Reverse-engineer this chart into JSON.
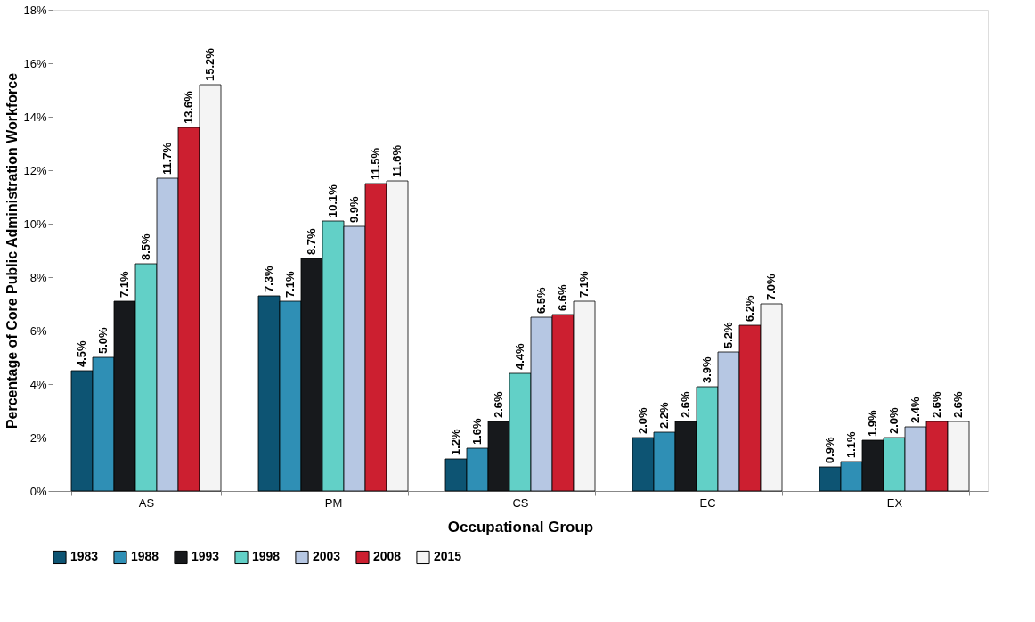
{
  "chart_data": {
    "type": "bar",
    "xlabel": "Occupational Group",
    "ylabel": "Percentage of Core Public Administration Workforce",
    "categories": [
      "AS",
      "PM",
      "CS",
      "EC",
      "EX"
    ],
    "ylim": [
      0,
      18
    ],
    "yticks": [
      {
        "value": 0,
        "label": "0%"
      },
      {
        "value": 2,
        "label": "2%"
      },
      {
        "value": 4,
        "label": "4%"
      },
      {
        "value": 6,
        "label": "6%"
      },
      {
        "value": 8,
        "label": "8%"
      },
      {
        "value": 10,
        "label": "10%"
      },
      {
        "value": 12,
        "label": "12%"
      },
      {
        "value": 14,
        "label": "14%"
      },
      {
        "value": 16,
        "label": "16%"
      },
      {
        "value": 18,
        "label": "18%"
      }
    ],
    "grid": false,
    "legend": "bottom",
    "series": [
      {
        "name": "1983",
        "color": "#0d5473",
        "values": [
          4.5,
          7.3,
          1.2,
          2.0,
          0.9
        ],
        "value_labels": [
          "4.5%",
          "7.3%",
          "1.2%",
          "2.0%",
          "0.9%"
        ]
      },
      {
        "name": "1988",
        "color": "#2f8fb5",
        "values": [
          5.0,
          7.1,
          1.6,
          2.2,
          1.1
        ],
        "value_labels": [
          "5.0%",
          "7.1%",
          "1.6%",
          "2.2%",
          "1.1%"
        ]
      },
      {
        "name": "1993",
        "color": "#17191c",
        "values": [
          7.1,
          8.7,
          2.6,
          2.6,
          1.9
        ],
        "value_labels": [
          "7.1%",
          "8.7%",
          "2.6%",
          "2.6%",
          "1.9%"
        ]
      },
      {
        "name": "1998",
        "color": "#62d0c7",
        "values": [
          8.5,
          10.1,
          4.4,
          3.9,
          2.0
        ],
        "value_labels": [
          "8.5%",
          "10.1%",
          "4.4%",
          "3.9%",
          "2.0%"
        ]
      },
      {
        "name": "2003",
        "color": "#b6c7e3",
        "values": [
          11.7,
          9.9,
          6.5,
          5.2,
          2.4
        ],
        "value_labels": [
          "11.7%",
          "9.9%",
          "6.5%",
          "5.2%",
          "2.4%"
        ]
      },
      {
        "name": "2008",
        "color": "#cc1f30",
        "values": [
          13.6,
          11.5,
          6.6,
          6.2,
          2.6
        ],
        "value_labels": [
          "13.6%",
          "11.5%",
          "6.6%",
          "6.2%",
          "2.6%"
        ]
      },
      {
        "name": "2015",
        "color": "#f4f4f4",
        "values": [
          15.2,
          11.6,
          7.1,
          7.0,
          2.6
        ],
        "value_labels": [
          "15.2%",
          "11.6%",
          "7.1%",
          "7.0%",
          "2.6%"
        ]
      }
    ]
  }
}
